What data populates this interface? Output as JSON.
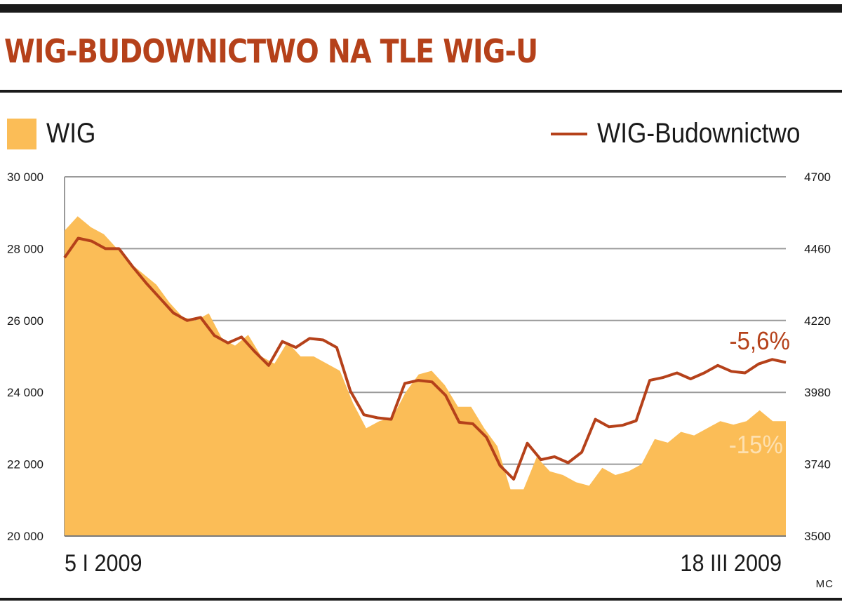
{
  "header": {
    "title": "WIG-BUDOWNICTWO NA TLE WIG-U",
    "credit": "MC"
  },
  "colors": {
    "title": "#b5411a",
    "wig_fill": "#fbbd57",
    "bud_line": "#b5411a",
    "wig_annotation": "#fde0b0"
  },
  "chart_data": {
    "type": "area",
    "legend_placement": "top",
    "grid": true,
    "x_labels": {
      "start": "5 I 2009",
      "end": "18 III 2009"
    },
    "y_left": {
      "ticks": [
        "30 000",
        "28 000",
        "26 000",
        "24 000",
        "22 000",
        "20 000"
      ],
      "range": [
        20000,
        30000
      ]
    },
    "y_right": {
      "ticks": [
        "4700",
        "4460",
        "4220",
        "3980",
        "3740",
        "3500"
      ],
      "range": [
        3500,
        4700
      ]
    },
    "series": [
      {
        "name": "WIG",
        "kind": "area",
        "axis": "left",
        "values": [
          28500,
          28900,
          28600,
          28400,
          28000,
          27600,
          27300,
          27000,
          26500,
          26100,
          26000,
          26200,
          25500,
          25300,
          25600,
          25000,
          24800,
          25400,
          25000,
          25000,
          24800,
          24600,
          23700,
          23000,
          23200,
          23300,
          24000,
          24500,
          24600,
          24200,
          23600,
          23600,
          23000,
          22500,
          21300,
          21300,
          22200,
          21800,
          21700,
          21500,
          21400,
          21900,
          21700,
          21800,
          22000,
          22700,
          22600,
          22900,
          22800,
          23000,
          23200,
          23100,
          23200,
          23500,
          23200,
          23200
        ],
        "annotation": "-15%"
      },
      {
        "name": "WIG-Budownictwo",
        "kind": "line",
        "axis": "right",
        "values": [
          4430,
          4495,
          4485,
          4460,
          4460,
          4400,
          4345,
          4295,
          4245,
          4220,
          4230,
          4170,
          4145,
          4165,
          4115,
          4070,
          4150,
          4130,
          4160,
          4155,
          4130,
          3985,
          3905,
          3895,
          3890,
          4010,
          4020,
          4015,
          3970,
          3880,
          3875,
          3830,
          3735,
          3690,
          3810,
          3755,
          3765,
          3745,
          3780,
          3890,
          3865,
          3870,
          3885,
          4020,
          4030,
          4045,
          4025,
          4045,
          4070,
          4050,
          4045,
          4075,
          4090,
          4080
        ],
        "annotation": "-5,6%"
      }
    ]
  }
}
